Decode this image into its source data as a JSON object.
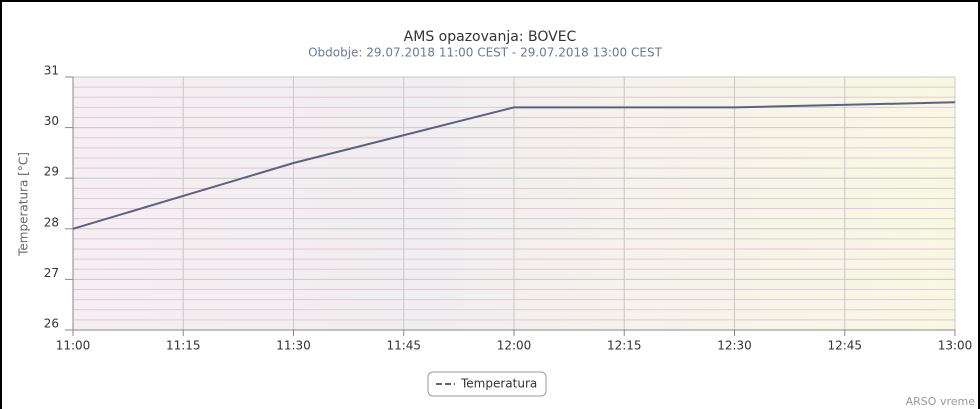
{
  "chart_data": {
    "type": "line",
    "title": "AMS opazovanja: BOVEC",
    "subtitle": "Obdobje: 29.07.2018 11:00 CEST - 29.07.2018 13:00 CEST",
    "y_label": "Temperatura [°C]",
    "credit": "ARSO vreme",
    "x": [
      "11:00",
      "11:30",
      "12:00",
      "12:30",
      "13:00"
    ],
    "xlim": [
      "11:00",
      "13:00"
    ],
    "xticks": [
      "11:00",
      "11:15",
      "11:30",
      "11:45",
      "12:00",
      "12:15",
      "12:30",
      "12:45",
      "13:00"
    ],
    "ylim": [
      26,
      31
    ],
    "yticks": [
      26,
      27,
      28,
      29,
      30,
      31
    ],
    "grid": true,
    "legend": "bottom",
    "series": [
      {
        "name": "Temperatura",
        "color": "#5d6180",
        "values": [
          28.0,
          29.3,
          30.4,
          30.4,
          30.5
        ]
      }
    ]
  }
}
